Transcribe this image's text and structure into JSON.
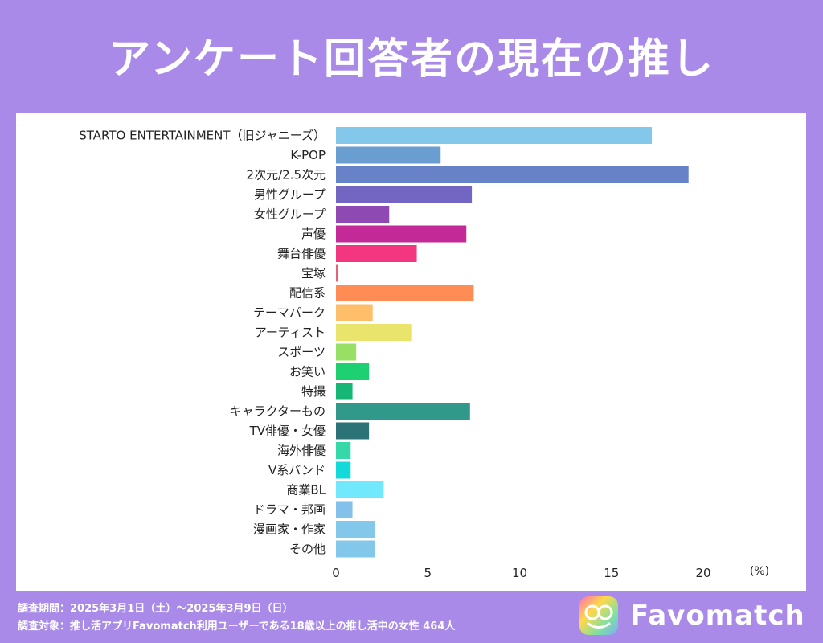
{
  "title": "アンケート回答者の現在の推し",
  "footnotes": {
    "period": "調査期間：2025年3月1日（土）～2025年3月9日（日）",
    "target": "調査対象：推し活アプリFavomatch利用ユーザーである18歳以上の推し活中の女性 464人"
  },
  "brand": {
    "name": "Favomatch",
    "logo_icon": "favomatch-logo-icon"
  },
  "chart_data": {
    "type": "bar",
    "orientation": "horizontal",
    "title": "アンケート回答者の現在の推し",
    "xlabel": "",
    "ylabel": "",
    "unit_label": "(%)",
    "xlim": [
      0,
      20
    ],
    "x_ticks": [
      0,
      5,
      10,
      15,
      20
    ],
    "grid": false,
    "categories": [
      "STARTO ENTERTAINMENT（旧ジャニーズ）",
      "K-POP",
      "2次元/2.5次元",
      "男性グループ",
      "女性グループ",
      "声優",
      "舞台俳優",
      "宝塚",
      "配信系",
      "テーマパーク",
      "アーティスト",
      "スポーツ",
      "お笑い",
      "特撮",
      "キャラクターもの",
      "TV俳優・女優",
      "海外俳優",
      "V系バンド",
      "商業BL",
      "ドラマ・邦画",
      "漫画家・作家",
      "その他"
    ],
    "values": [
      17.2,
      5.7,
      19.2,
      7.4,
      2.9,
      7.1,
      4.4,
      0.1,
      7.5,
      2.0,
      4.1,
      1.1,
      1.8,
      0.9,
      7.3,
      1.8,
      0.8,
      0.8,
      2.6,
      0.9,
      2.1,
      2.1
    ],
    "colors": [
      "#83c8ea",
      "#6a9ed0",
      "#6882c8",
      "#7366c3",
      "#8e49b3",
      "#c42a97",
      "#f23780",
      "#e5637a",
      "#ff8c55",
      "#ffbe6a",
      "#e9e56c",
      "#97e065",
      "#1ed071",
      "#15b676",
      "#31998a",
      "#2b7376",
      "#35d8a9",
      "#14d9d9",
      "#71e8fb",
      "#83c0ea",
      "#83c8ea",
      "#83c8ea"
    ]
  }
}
